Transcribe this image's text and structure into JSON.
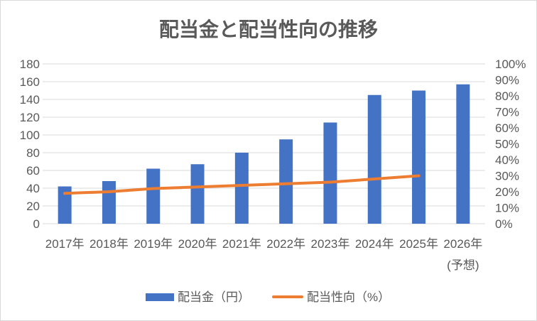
{
  "chart_data": {
    "type": "bar",
    "title": "配当金と配当性向の推移",
    "categories": [
      "2017年",
      "2018年",
      "2019年",
      "2020年",
      "2021年",
      "2022年",
      "2023年",
      "2024年",
      "2025年",
      "2026年\n(予想)"
    ],
    "series": [
      {
        "name": "配当金（円）",
        "type": "bar",
        "axis": "left",
        "color": "#4472C4",
        "values": [
          42,
          48,
          62,
          67,
          80,
          95,
          114,
          145,
          150,
          157
        ]
      },
      {
        "name": "配当性向（%）",
        "type": "line",
        "axis": "right",
        "color": "#ED7D31",
        "values": [
          19,
          20,
          22,
          23,
          24,
          25,
          26,
          28,
          30,
          null
        ]
      }
    ],
    "y_left": {
      "ylim": [
        0,
        180
      ],
      "ticks": [
        0,
        20,
        40,
        60,
        80,
        100,
        120,
        140,
        160,
        180
      ],
      "tick_labels": [
        "0",
        "20",
        "40",
        "60",
        "80",
        "100",
        "120",
        "140",
        "160",
        "180"
      ]
    },
    "y_right": {
      "ylim": [
        0,
        100
      ],
      "ticks": [
        0,
        10,
        20,
        30,
        40,
        50,
        60,
        70,
        80,
        90,
        100
      ],
      "tick_labels": [
        "0%",
        "10%",
        "20%",
        "30%",
        "40%",
        "50%",
        "60%",
        "70%",
        "80%",
        "90%",
        "100%"
      ]
    },
    "grid": true,
    "legend_position": "bottom"
  },
  "colors": {
    "text": "#595959",
    "grid": "#D9D9D9",
    "border": "#D9D9D9",
    "background": "#FFFFFF"
  }
}
